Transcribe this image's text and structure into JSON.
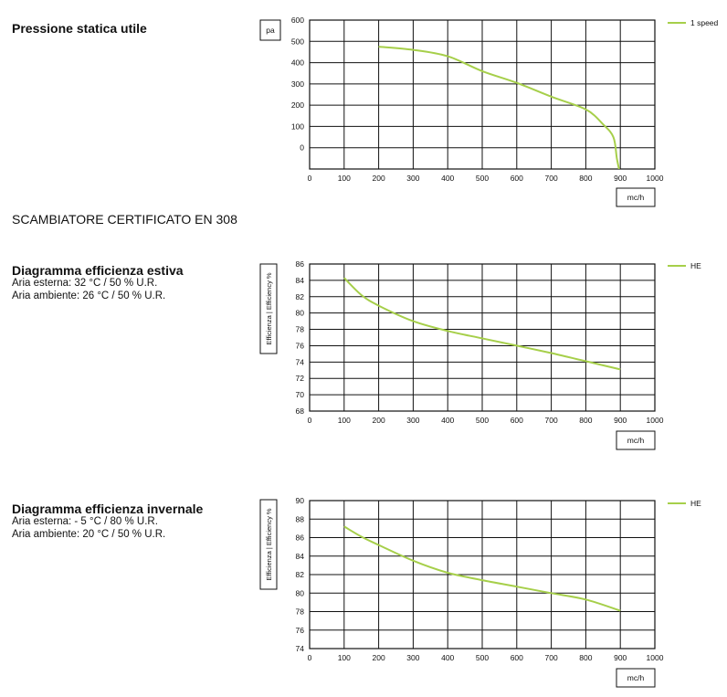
{
  "section_heading": "SCAMBIATORE CERTIFICATO EN 308",
  "chart_data": [
    {
      "type": "line",
      "title": "Pressione statica utile",
      "subtitle_lines": [],
      "ylabel": "pa",
      "xlabel": "mc/h",
      "xlim": [
        0,
        1000
      ],
      "ylim": [
        -100,
        600
      ],
      "x_ticks": [
        0,
        100,
        200,
        300,
        400,
        500,
        600,
        700,
        800,
        900,
        1000
      ],
      "y_ticks": [
        0,
        100,
        200,
        300,
        400,
        500,
        600
      ],
      "grid": true,
      "legend_position": "top-right",
      "color": "#a6cf4a",
      "series": [
        {
          "name": "1 speed",
          "x": [
            200,
            300,
            400,
            500,
            600,
            700,
            800,
            850,
            880,
            890,
            900
          ],
          "y": [
            475,
            460,
            430,
            360,
            305,
            240,
            180,
            110,
            50,
            -50,
            -130
          ]
        }
      ]
    },
    {
      "type": "line",
      "title": "Diagramma efficienza estiva",
      "subtitle_lines": [
        "Aria esterna: 32 °C / 50 % U.R.",
        "Aria ambiente: 26 °C / 50 % U.R."
      ],
      "ylabel": "Efficienza | Efficiency %",
      "xlabel": "mc/h",
      "xlim": [
        0,
        1000
      ],
      "ylim": [
        68,
        86
      ],
      "x_ticks": [
        0,
        100,
        200,
        300,
        400,
        500,
        600,
        700,
        800,
        900,
        1000
      ],
      "y_ticks": [
        68,
        70,
        72,
        74,
        76,
        78,
        80,
        82,
        84,
        86
      ],
      "grid": true,
      "legend_position": "top-right",
      "color": "#a6cf4a",
      "series": [
        {
          "name": "HE",
          "x": [
            100,
            150,
            200,
            300,
            400,
            500,
            600,
            700,
            800,
            900
          ],
          "y": [
            84.3,
            82.2,
            80.9,
            79.0,
            77.8,
            76.9,
            76.0,
            75.1,
            74.1,
            73.1
          ]
        }
      ]
    },
    {
      "type": "line",
      "title": "Diagramma efficienza invernale",
      "subtitle_lines": [
        "Aria esterna: - 5 °C / 80 % U.R.",
        "Aria ambiente: 20 °C / 50 % U.R."
      ],
      "ylabel": "Efficienza | Efficiency %",
      "xlabel": "mc/h",
      "xlim": [
        0,
        1000
      ],
      "ylim": [
        74,
        90
      ],
      "x_ticks": [
        0,
        100,
        200,
        300,
        400,
        500,
        600,
        700,
        800,
        900,
        1000
      ],
      "y_ticks": [
        74,
        76,
        78,
        80,
        82,
        84,
        86,
        88,
        90
      ],
      "grid": true,
      "legend_position": "top-right",
      "color": "#a6cf4a",
      "series": [
        {
          "name": "HE",
          "x": [
            100,
            150,
            200,
            300,
            400,
            500,
            600,
            700,
            800,
            900
          ],
          "y": [
            87.2,
            86.1,
            85.2,
            83.5,
            82.2,
            81.4,
            80.7,
            80.0,
            79.3,
            78.1
          ]
        }
      ]
    }
  ]
}
